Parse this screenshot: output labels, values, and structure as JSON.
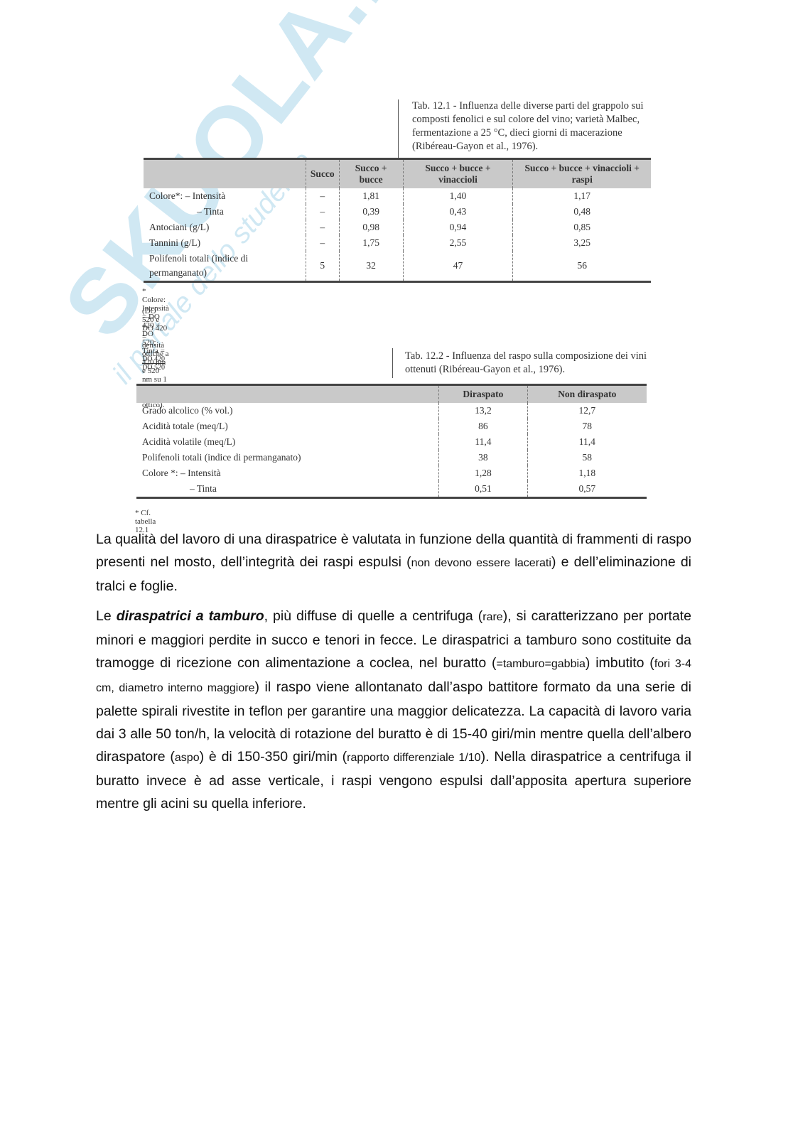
{
  "watermark": {
    "brand": "SKUOLA.net",
    "tagline": "il portale dello studente"
  },
  "table1": {
    "caption": "Tab. 12.1 - Influenza delle diverse parti del grappolo sui composti fenolici e sul colore del vino; varietà Malbec, fermentazione a 25 °C, dieci giorni di macerazione (Ribéreau-Gayon et al., 1976).",
    "headers": [
      "Succo",
      "Succo + bucce",
      "Succo + bucce + vinaccioli",
      "Succo + bucce + vinaccioli + raspi"
    ],
    "rows": [
      [
        "Colore*: – Intensità",
        "–",
        "1,81",
        "1,40",
        "1,17"
      ],
      [
        "– Tinta",
        "–",
        "0,39",
        "0,43",
        "0,48"
      ],
      [
        "Antociani (g/L)",
        "–",
        "0,98",
        "0,94",
        "0,85"
      ],
      [
        "Tannini (g/L)",
        "–",
        "1,75",
        "2,55",
        "3,25"
      ],
      [
        "Polifenoli totali (indice di permanganato)",
        "5",
        "32",
        "47",
        "56"
      ]
    ],
    "note_formula": {
      "text": "* Colore: Intensità = DO 420 + DO 520; Tinta =",
      "numerator": "DO 420",
      "denominator": "DO 520"
    },
    "note": "(DO 520 e DO 420 = densità ottiche a 420 nm e 520 nm su 1 mm di percorso ottico)."
  },
  "table2": {
    "caption": "Tab. 12.2 - Influenza del raspo sulla composizione dei vini ottenuti (Ribéreau-Gayon et al., 1976).",
    "headers": [
      "Diraspato",
      "Non diraspato"
    ],
    "rows": [
      [
        "Grado alcolico (% vol.)",
        "13,2",
        "12,7"
      ],
      [
        "Acidità totale (meq/L)",
        "86",
        "78"
      ],
      [
        "Acidità volatile (meq/L)",
        "11,4",
        "11,4"
      ],
      [
        "Polifenoli totali (indice di permanganato)",
        "38",
        "58"
      ],
      [
        "Colore *: – Intensità",
        "1,28",
        "1,18"
      ],
      [
        "– Tinta",
        "0,51",
        "0,57"
      ]
    ],
    "note": "* Cf. tabella 12.1"
  },
  "paragraphs": [
    [
      "La qualità del lavoro di una diraspatrice è valutata in funzione della quantità di frammenti di raspo presenti nel mosto, dell’integrità dei raspi espulsi (",
      "non devono essere lacerati",
      ") e dell’eliminazione di tralci e foglie."
    ],
    [
      "Le ",
      "diraspatrici a tamburo",
      ", più diffuse di quelle a centrifuga (",
      "rare",
      "), si caratterizzano per portate minori e maggiori perdite in succo e tenori in fecce. Le diraspatrici a tamburo sono costituite da tramogge di ricezione con alimentazione a coclea, nel buratto (",
      "=tamburo=gabbia",
      ") imbutito (",
      "fori 3-4 cm, diametro interno maggiore",
      ") il raspo viene allontanato dall’aspo battitore formato da una serie di palette spirali rivestite in teflon per garantire una maggior delicatezza. La capacità di lavoro varia dai 3 alle 50 ton/h, la velocità di rotazione del buratto è di 15-40 giri/min mentre quella dell’albero diraspatore (",
      "aspo",
      ") è di 150-350 giri/min (",
      "rapporto differenziale 1/10",
      "). Nella diraspatrice a centrifuga il buratto invece è ad asse verticale, i raspi vengono espulsi dall’apposita apertura superiore mentre gli acini su quella inferiore."
    ]
  ]
}
